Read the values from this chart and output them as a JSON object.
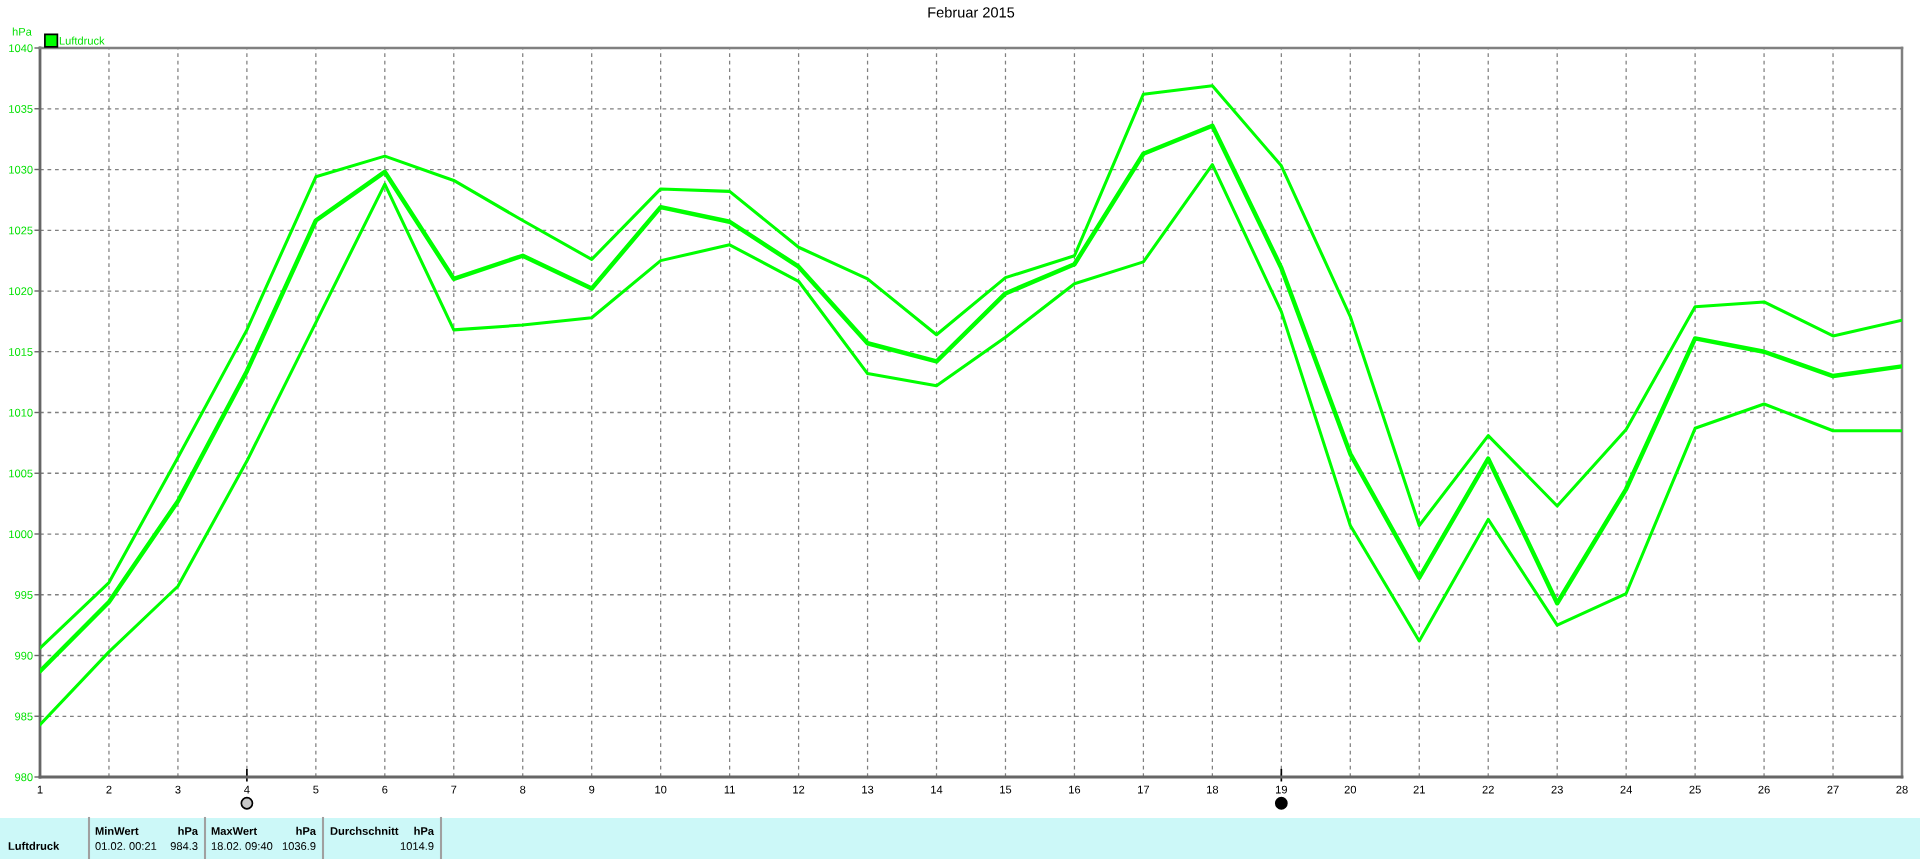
{
  "chart_data": {
    "type": "line",
    "title": "Februar 2015",
    "ylabel": "hPa",
    "x": [
      1,
      2,
      3,
      4,
      5,
      6,
      7,
      8,
      9,
      10,
      11,
      12,
      13,
      14,
      15,
      16,
      17,
      18,
      19,
      20,
      21,
      22,
      23,
      24,
      25,
      26,
      27,
      28
    ],
    "xlim": [
      1,
      28
    ],
    "xticks": [
      1,
      2,
      3,
      4,
      5,
      6,
      7,
      8,
      9,
      10,
      11,
      12,
      13,
      14,
      15,
      16,
      17,
      18,
      19,
      20,
      21,
      22,
      23,
      24,
      25,
      26,
      27,
      28
    ],
    "ylim": [
      980,
      1040
    ],
    "yticks": [
      980,
      985,
      990,
      995,
      1000,
      1005,
      1010,
      1015,
      1020,
      1025,
      1030,
      1035,
      1040
    ],
    "grid": true,
    "legend": "top left",
    "series": [
      {
        "name": "Luftdruck",
        "color": "#00ff00",
        "values": [
          988.7,
          994.4,
          1002.7,
          1013.4,
          1025.8,
          1029.8,
          1021.0,
          1022.9,
          1020.2,
          1026.9,
          1025.7,
          1022.0,
          1015.7,
          1014.2,
          1019.8,
          1022.2,
          1031.3,
          1033.6,
          1021.9,
          1006.6,
          996.4,
          1006.2,
          994.3,
          1003.7,
          1016.1,
          1015.0,
          1013.0,
          1013.8
        ]
      },
      {
        "color": "#00ff00",
        "values": [
          990.6,
          996.0,
          1006.3,
          1016.8,
          1029.4,
          1031.1,
          1029.1,
          1025.8,
          1022.6,
          1028.4,
          1028.2,
          1023.6,
          1021.0,
          1016.4,
          1021.1,
          1022.9,
          1036.2,
          1036.9,
          1030.3,
          1017.9,
          1000.7,
          1008.1,
          1002.3,
          1008.6,
          1018.7,
          1019.1,
          1016.3,
          1017.6
        ]
      },
      {
        "color": "#00ff00",
        "values": [
          984.3,
          990.3,
          995.7,
          1006.0,
          1017.4,
          1028.8,
          1016.8,
          1017.2,
          1017.8,
          1022.5,
          1023.8,
          1020.8,
          1013.2,
          1012.2,
          1016.2,
          1020.6,
          1022.4,
          1030.4,
          1018.3,
          1000.7,
          991.2,
          1001.2,
          992.5,
          995.1,
          1008.7,
          1010.7,
          1008.5,
          1008.5
        ]
      }
    ],
    "annotations": [
      "Luftdruck",
      "MinWert",
      "hPa",
      "01.02. 00:21",
      "984.3",
      "MaxWert",
      "hPa",
      "18.02. 09:40",
      "1036.9",
      "Durchschnitt",
      "hPa",
      "1014.9"
    ]
  }
}
